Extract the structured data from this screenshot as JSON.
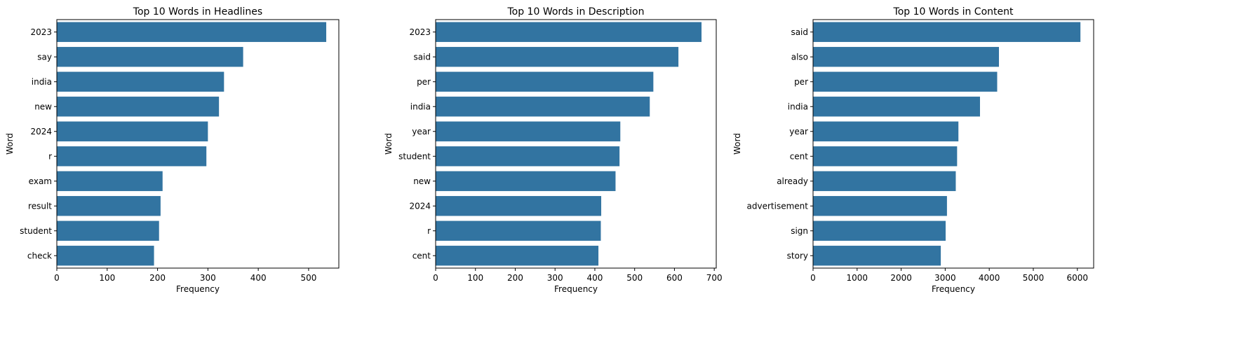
{
  "chart_data": [
    {
      "type": "bar",
      "orientation": "horizontal",
      "title": "Top 10 Words in Headlines",
      "xlabel": "Frequency",
      "ylabel": "Word",
      "xlim": [
        0,
        560
      ],
      "xticks": [
        0,
        100,
        200,
        300,
        400,
        500
      ],
      "categories": [
        "2023",
        "say",
        "india",
        "new",
        "2024",
        "r",
        "exam",
        "result",
        "student",
        "check"
      ],
      "values": [
        535,
        370,
        332,
        322,
        300,
        297,
        210,
        206,
        203,
        193
      ],
      "color": "#3274a1",
      "grid": false
    },
    {
      "type": "bar",
      "orientation": "horizontal",
      "title": "Top 10 Words in Description",
      "xlabel": "Frequency",
      "ylabel": "Word",
      "xlim": [
        0,
        705
      ],
      "xticks": [
        0,
        100,
        200,
        300,
        400,
        500,
        600,
        700
      ],
      "categories": [
        "2023",
        "said",
        "per",
        "india",
        "year",
        "student",
        "new",
        "2024",
        "r",
        "cent"
      ],
      "values": [
        668,
        610,
        547,
        538,
        464,
        462,
        452,
        416,
        415,
        409
      ],
      "color": "#3274a1",
      "grid": false
    },
    {
      "type": "bar",
      "orientation": "horizontal",
      "title": "Top 10 Words in Content",
      "xlabel": "Frequency",
      "ylabel": "Word",
      "xlim": [
        0,
        6370
      ],
      "xticks": [
        0,
        1000,
        2000,
        3000,
        4000,
        5000,
        6000
      ],
      "categories": [
        "said",
        "also",
        "per",
        "india",
        "year",
        "cent",
        "already",
        "advertisement",
        "sign",
        "story"
      ],
      "values": [
        6070,
        4220,
        4180,
        3790,
        3300,
        3270,
        3240,
        3040,
        3010,
        2900
      ],
      "color": "#3274a1",
      "grid": false
    }
  ]
}
